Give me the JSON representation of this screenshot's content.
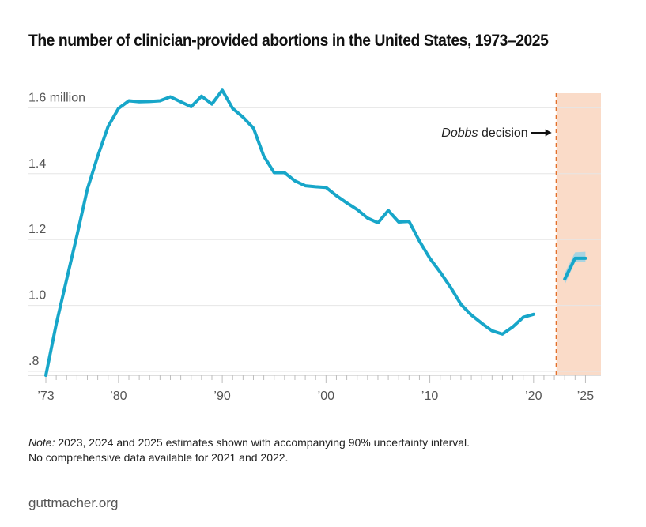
{
  "chart_data": {
    "type": "line",
    "title": "The number of clinician-provided abortions in the United States, 1973–2025",
    "ylim": [
      0.745,
      1.62
    ],
    "xlim": [
      1973,
      2025.5
    ],
    "y_ticks": [
      {
        "value": 1.6,
        "label": "1.6 million"
      },
      {
        "value": 1.4,
        "label": "1.4"
      },
      {
        "value": 1.2,
        "label": "1.2"
      },
      {
        "value": 1.0,
        "label": "1.0"
      },
      {
        "value": 0.8,
        "label": ".8"
      }
    ],
    "x_ticks": [
      {
        "value": 1973,
        "label": "’73"
      },
      {
        "value": 1980,
        "label": "’80"
      },
      {
        "value": 1990,
        "label": "’90"
      },
      {
        "value": 2000,
        "label": "’00"
      },
      {
        "value": 2010,
        "label": "’10"
      },
      {
        "value": 2020,
        "label": "’20"
      },
      {
        "value": 2025,
        "label": "’25"
      }
    ],
    "series": [
      {
        "x": [
          1973,
          1974,
          1975,
          1976,
          1977,
          1978,
          1979,
          1980,
          1981,
          1982,
          1983,
          1984,
          1985,
          1986,
          1987,
          1988,
          1989,
          1990,
          1991,
          1992,
          1993,
          1994,
          1995,
          1996,
          1997,
          1998,
          1999,
          2000,
          2001,
          2002,
          2003,
          2004,
          2005,
          2006,
          2007,
          2008,
          2009,
          2010,
          2011,
          2012,
          2013,
          2014,
          2015,
          2016,
          2017,
          2018,
          2019,
          2020
        ],
        "values": [
          0.745,
          0.9,
          1.035,
          1.17,
          1.31,
          1.41,
          1.5,
          1.555,
          1.578,
          1.575,
          1.576,
          1.578,
          1.59,
          1.575,
          1.56,
          1.592,
          1.568,
          1.61,
          1.555,
          1.528,
          1.495,
          1.41,
          1.36,
          1.36,
          1.335,
          1.32,
          1.317,
          1.315,
          1.29,
          1.268,
          1.248,
          1.222,
          1.208,
          1.245,
          1.21,
          1.212,
          1.152,
          1.1,
          1.058,
          1.012,
          0.96,
          0.928,
          0.903,
          0.88,
          0.87,
          0.892,
          0.921,
          0.93
        ]
      },
      {
        "x": [
          2023,
          2024,
          2025
        ],
        "values": [
          1.037,
          1.1,
          1.1
        ],
        "lower": [
          1.02,
          1.088,
          1.088
        ],
        "upper": [
          1.055,
          1.118,
          1.12
        ]
      }
    ],
    "colors": {
      "line": "#17a6c9",
      "band": "#9fd3e3",
      "shade": "#fadbc8",
      "dobbs": "#e3712c"
    },
    "annotation": {
      "label_italic": "Dobbs",
      "label_rest": " decision",
      "x": 2022.2
    },
    "shaded_region": [
      2022.2,
      2026
    ]
  },
  "note": {
    "label": "Note:",
    "line1": " 2023, 2024 and 2025 estimates shown with accompanying 90% uncertainty interval.",
    "line2": "No comprehensive data available for 2021 and 2022."
  },
  "source": "guttmacher.org"
}
